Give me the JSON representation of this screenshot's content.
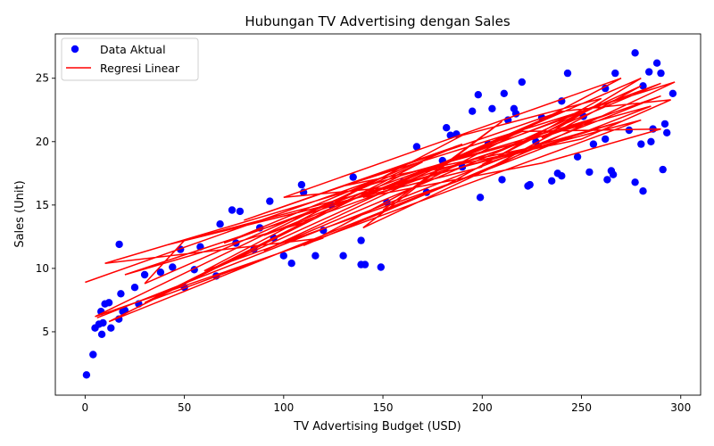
{
  "chart_data": {
    "type": "scatter",
    "title": "Hubungan TV Advertising dengan Sales",
    "xlabel": "TV Advertising Budget (USD)",
    "ylabel": "Sales (Unit)",
    "xlim": [
      -15,
      310
    ],
    "ylim": [
      0,
      28.5
    ],
    "xticks": [
      0,
      50,
      100,
      150,
      200,
      250,
      300
    ],
    "yticks": [
      5,
      10,
      15,
      20,
      25
    ],
    "grid": false,
    "legend_position": "top-left",
    "colors": {
      "points": "#0000ff",
      "line": "#ff0000"
    },
    "series": [
      {
        "name": "Data Aktual",
        "type": "scatter",
        "points": [
          [
            0.7,
            1.6
          ],
          [
            4,
            3.2
          ],
          [
            8.4,
            4.8
          ],
          [
            5,
            5.3
          ],
          [
            7,
            5.6
          ],
          [
            9,
            5.7
          ],
          [
            13,
            5.3
          ],
          [
            17,
            6
          ],
          [
            19,
            6.6
          ],
          [
            20,
            6.7
          ],
          [
            8,
            6.6
          ],
          [
            10,
            7.2
          ],
          [
            12,
            7.3
          ],
          [
            18,
            8
          ],
          [
            25,
            8.5
          ],
          [
            27,
            7.2
          ],
          [
            17.2,
            11.9
          ],
          [
            30,
            9.5
          ],
          [
            38,
            9.7
          ],
          [
            44,
            10.1
          ],
          [
            48,
            11.5
          ],
          [
            50,
            8.5
          ],
          [
            55,
            9.9
          ],
          [
            58,
            11.7
          ],
          [
            66,
            9.4
          ],
          [
            68,
            13.5
          ],
          [
            74,
            14.6
          ],
          [
            76,
            12
          ],
          [
            78,
            14.5
          ],
          [
            85,
            11.5
          ],
          [
            88,
            13.2
          ],
          [
            93,
            15.3
          ],
          [
            95,
            12.4
          ],
          [
            100,
            11
          ],
          [
            104,
            10.4
          ],
          [
            109,
            16.6
          ],
          [
            110,
            16
          ],
          [
            116,
            11
          ],
          [
            120,
            13
          ],
          [
            124,
            15
          ],
          [
            130,
            11
          ],
          [
            135,
            17.2
          ],
          [
            139,
            12.2
          ],
          [
            139,
            10.3
          ],
          [
            141,
            10.3
          ],
          [
            149,
            10.1
          ],
          [
            152,
            15.2
          ],
          [
            160,
            16.8
          ],
          [
            167,
            19.6
          ],
          [
            172,
            16
          ],
          [
            180,
            18.5
          ],
          [
            182,
            21.1
          ],
          [
            184,
            20.5
          ],
          [
            187,
            20.6
          ],
          [
            190,
            18
          ],
          [
            195,
            22.4
          ],
          [
            198,
            23.7
          ],
          [
            199,
            15.6
          ],
          [
            205,
            22.6
          ],
          [
            210,
            17
          ],
          [
            211,
            23.8
          ],
          [
            213,
            21.7
          ],
          [
            216,
            22.6
          ],
          [
            217,
            22.2
          ],
          [
            220,
            24.7
          ],
          [
            223,
            16.5
          ],
          [
            224,
            16.6
          ],
          [
            227,
            20
          ],
          [
            230,
            21.9
          ],
          [
            235,
            16.9
          ],
          [
            238,
            17.5
          ],
          [
            240,
            17.3
          ],
          [
            240,
            23.2
          ],
          [
            243,
            25.4
          ],
          [
            248,
            18.8
          ],
          [
            251,
            22
          ],
          [
            254,
            17.6
          ],
          [
            256,
            19.8
          ],
          [
            262,
            24.2
          ],
          [
            263,
            17
          ],
          [
            265,
            17.7
          ],
          [
            266,
            17.4
          ],
          [
            267,
            25.4
          ],
          [
            274,
            20.9
          ],
          [
            277,
            16.8
          ],
          [
            277,
            27
          ],
          [
            280,
            19.8
          ],
          [
            281,
            16.1
          ],
          [
            281,
            24.4
          ],
          [
            284,
            25.5
          ],
          [
            285,
            20
          ],
          [
            286,
            21
          ],
          [
            288,
            26.2
          ],
          [
            290,
            25.4
          ],
          [
            291,
            17.8
          ],
          [
            292,
            21.4
          ],
          [
            293,
            20.7
          ],
          [
            296,
            23.8
          ],
          [
            262,
            20.2
          ],
          [
            203,
            19.8
          ]
        ]
      },
      {
        "name": "Regresi Linear",
        "type": "line",
        "points": [
          [
            0,
            8.9
          ],
          [
            150,
            17.2
          ],
          [
            5,
            6.2
          ],
          [
            120,
            12.4
          ],
          [
            10,
            10.4
          ],
          [
            260,
            22
          ],
          [
            20,
            9.5
          ],
          [
            110,
            13.6
          ],
          [
            30,
            7.3
          ],
          [
            280,
            21.7
          ],
          [
            40,
            11.8
          ],
          [
            200,
            18
          ],
          [
            50,
            12.2
          ],
          [
            30,
            8.8
          ],
          [
            170,
            18.4
          ],
          [
            60,
            9.6
          ],
          [
            240,
            22.4
          ],
          [
            80,
            13.8
          ],
          [
            190,
            19.8
          ],
          [
            70,
            12
          ],
          [
            290,
            24.6
          ],
          [
            90,
            11.4
          ],
          [
            160,
            16.5
          ],
          [
            100,
            15.6
          ],
          [
            270,
            25
          ],
          [
            110,
            11.8
          ],
          [
            230,
            19.7
          ],
          [
            130,
            16.5
          ],
          [
            297,
            24.7
          ],
          [
            140,
            13.2
          ],
          [
            210,
            21.6
          ],
          [
            150,
            14.6
          ],
          [
            285,
            22.8
          ],
          [
            160,
            17.4
          ],
          [
            12,
            5.8
          ],
          [
            180,
            16.4
          ],
          [
            260,
            23.4
          ],
          [
            190,
            20.5
          ],
          [
            60,
            9.8
          ],
          [
            200,
            17.6
          ],
          [
            280,
            24.4
          ],
          [
            210,
            19.4
          ],
          [
            90,
            12.6
          ],
          [
            220,
            20.8
          ],
          [
            290,
            21
          ],
          [
            230,
            18.3
          ],
          [
            140,
            15.6
          ],
          [
            240,
            22.4
          ],
          [
            295,
            23.3
          ],
          [
            250,
            20.2
          ],
          [
            170,
            17.6
          ],
          [
            260,
            23
          ],
          [
            200,
            18.2
          ],
          [
            270,
            21.6
          ],
          [
            150,
            16.2
          ],
          [
            280,
            25
          ],
          [
            230,
            20.3
          ],
          [
            290,
            23.6
          ],
          [
            6,
            6.1
          ]
        ]
      }
    ]
  }
}
